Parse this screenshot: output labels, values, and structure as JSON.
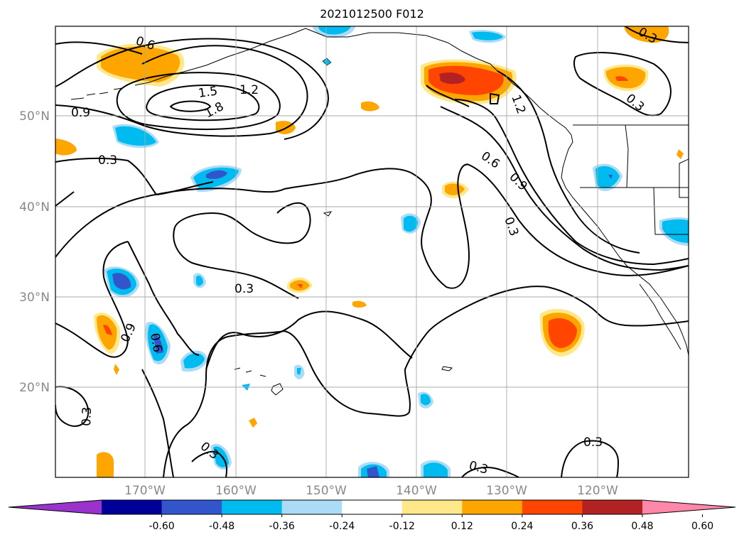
{
  "title": "2021012500 F012",
  "lat_labels": [
    "50°N",
    "40°N",
    "30°N",
    "20°N"
  ],
  "lon_labels": [
    "170°W",
    "160°W",
    "150°W",
    "140°W",
    "130°W",
    "120°W"
  ],
  "contour_labels": [
    "0.6",
    "1.5",
    "1.2",
    "1.8",
    "0.9",
    "0.3",
    "0.9",
    "0.6",
    "0.3",
    "0.6",
    "0.9",
    "1.2",
    "0.3",
    "0.3",
    "0.3",
    "0.3",
    "0.3",
    "0.3",
    "0.3"
  ],
  "colorbar": {
    "ticks": [
      "-0.60",
      "-0.48",
      "-0.36",
      "-0.24",
      "-0.12",
      "0.12",
      "0.24",
      "0.36",
      "0.48",
      "0.60"
    ],
    "colors": [
      "#9933cc",
      "#000099",
      "#3355cc",
      "#00bbf0",
      "#aadcf8",
      "#ffffff",
      "#ffe88a",
      "#ffa500",
      "#ff4500",
      "#b22222",
      "#ff88aa"
    ]
  }
}
